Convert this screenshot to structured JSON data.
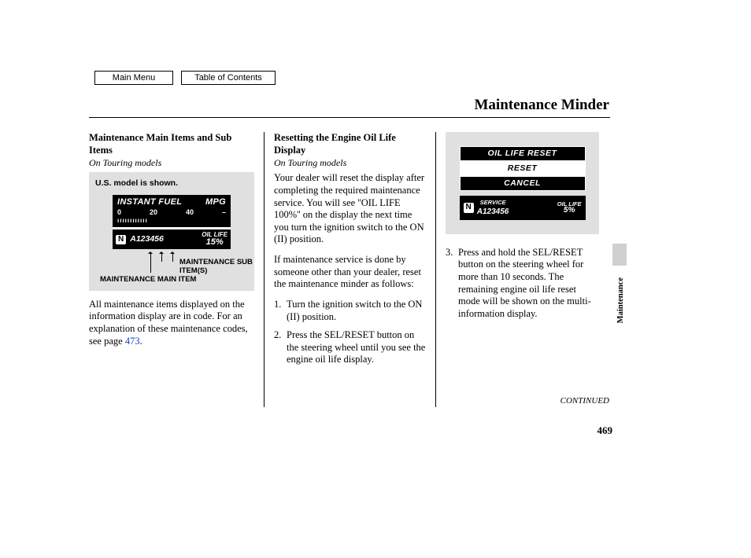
{
  "nav": {
    "main_menu": "Main Menu",
    "toc": "Table of Contents"
  },
  "page_title": "Maintenance Minder",
  "side_label": "Maintenance",
  "continued": "CONTINUED",
  "page_number": "469",
  "col1": {
    "heading": "Maintenance Main Items and Sub Items",
    "subnote": "On Touring models",
    "model_note": "U.S. model is shown.",
    "display": {
      "line1_left": "INSTANT FUEL",
      "line1_right": "MPG",
      "scale_0": "0",
      "scale_20": "20",
      "scale_40": "40",
      "dash": "–",
      "ticks": "ıııııııııııı",
      "n": "N",
      "code": "A123456",
      "oil_label": "OIL LIFE",
      "oil_value": "15%"
    },
    "label_main": "MAINTENANCE MAIN ITEM",
    "label_sub": "MAINTENANCE SUB ITEM(S)",
    "body": "All maintenance items displayed on the information display are in code. For an explanation of these maintenance codes, see page ",
    "link_text": "473",
    "body_end": "."
  },
  "col2": {
    "heading": "Resetting the Engine Oil Life Display",
    "subnote": "On Touring models",
    "p1": "Your dealer will reset the display after completing the required maintenance service. You will see ''OIL LIFE 100%'' on the display the next time you turn the ignition switch to the ON (II) position.",
    "p2": "If maintenance service is done by someone other than your dealer, reset the maintenance minder as follows:",
    "step1_num": "1.",
    "step1": "Turn the ignition switch to the ON (II) position.",
    "step2_num": "2.",
    "step2": "Press the SEL/RESET button on the steering wheel until you see the engine oil life display."
  },
  "col3": {
    "display": {
      "l1": "OIL LIFE RESET",
      "l2": "RESET",
      "l3": "CANCEL",
      "n": "N",
      "svc": "SERVICE",
      "code": "A123456",
      "oil_label": "OIL LIFE",
      "oil_value": "5%"
    },
    "step3_num": "3.",
    "step3": "Press and hold the SEL/RESET button on the steering wheel for more than 10 seconds. The remaining engine oil life reset mode will be shown on the multi-information display."
  },
  "colors": {
    "page_bg": "#ffffff",
    "graybox_bg": "#e0e0e0",
    "display_bg": "#000000",
    "display_fg": "#ffffff",
    "link": "#1047c8",
    "tab": "#d0d0d0"
  }
}
